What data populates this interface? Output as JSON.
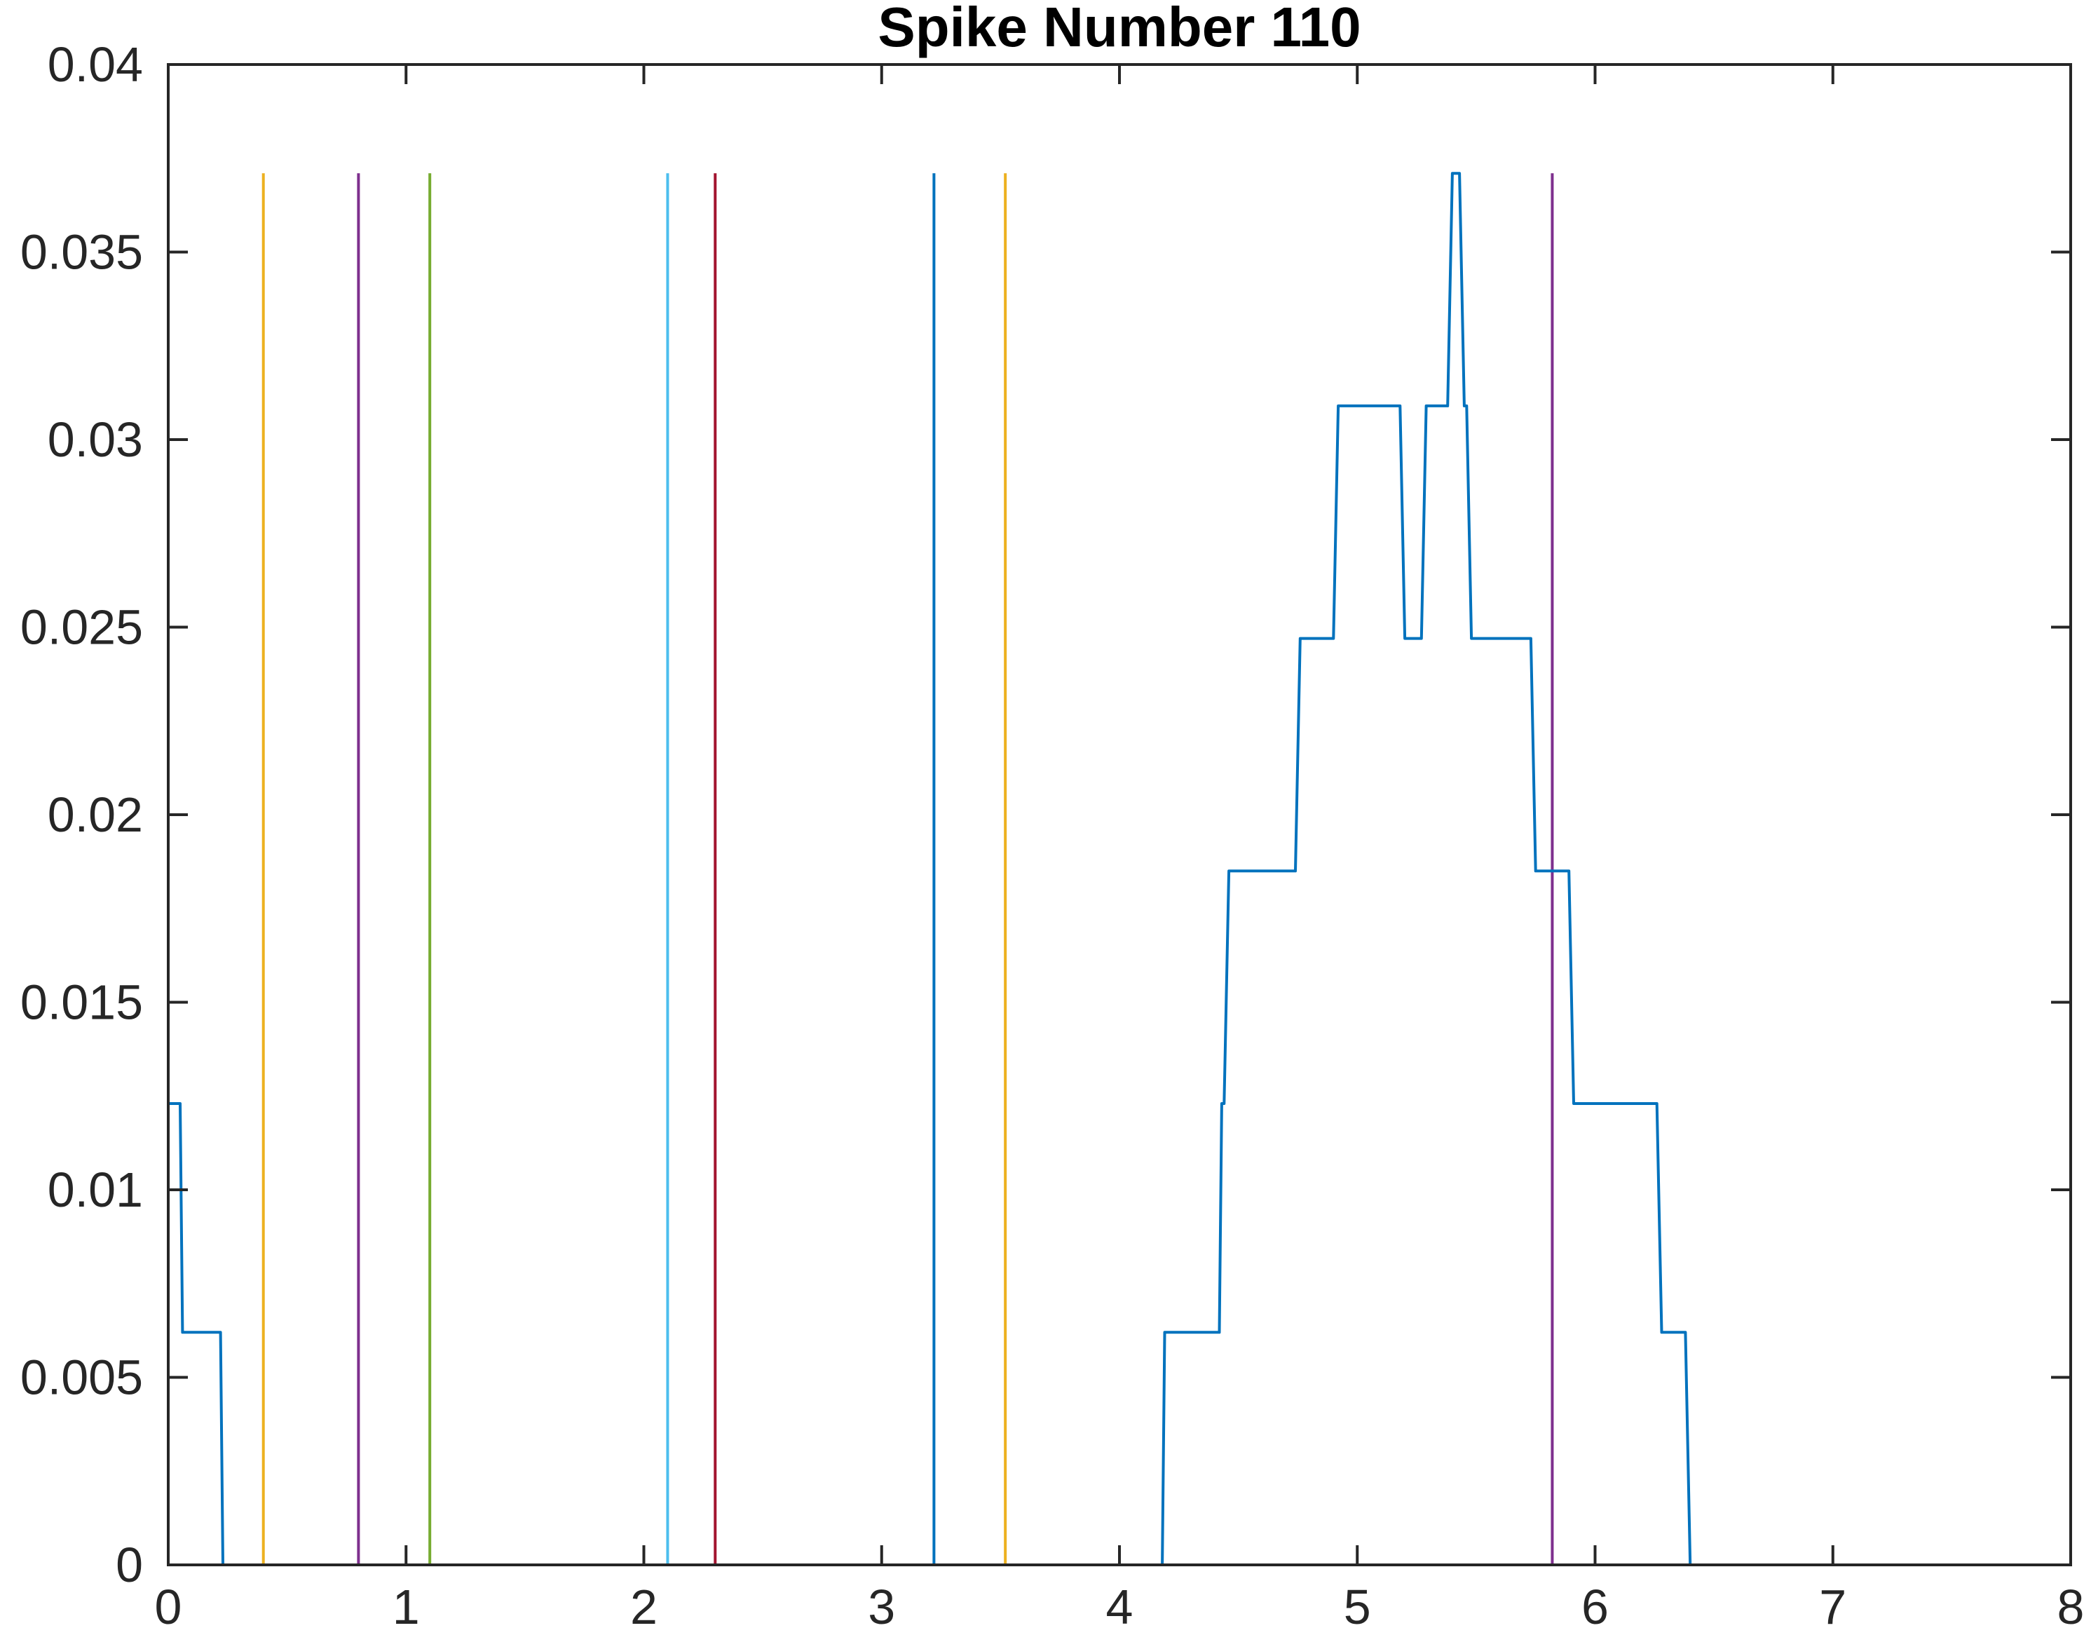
{
  "chart_data": {
    "type": "line",
    "title": "Spike Number 110",
    "xlabel": "",
    "ylabel": "",
    "xlim": [
      0,
      8
    ],
    "ylim": [
      0,
      0.04
    ],
    "grid": false,
    "x_ticks": [
      0,
      1,
      2,
      3,
      4,
      5,
      6,
      7,
      8
    ],
    "x_tick_labels": [
      "0",
      "1",
      "2",
      "3",
      "4",
      "5",
      "6",
      "7",
      "8"
    ],
    "y_ticks": [
      0,
      0.005,
      0.01,
      0.015,
      0.02,
      0.025,
      0.03,
      0.035,
      0.04
    ],
    "y_tick_labels": [
      "0",
      "0.005",
      "0.01",
      "0.015",
      "0.02",
      "0.025",
      "0.03",
      "0.035",
      "0.04"
    ],
    "series": [
      {
        "color": "#0072BD",
        "points": [
          [
            0,
            0.0123
          ],
          [
            0.05,
            0.0123
          ],
          [
            0.06,
            0.0062
          ],
          [
            0.22,
            0.0062
          ],
          [
            0.23,
            0
          ],
          [
            4.18,
            0
          ],
          [
            4.19,
            0.0062
          ],
          [
            4.42,
            0.0062
          ],
          [
            4.43,
            0.0123
          ],
          [
            4.44,
            0.0123
          ],
          [
            4.46,
            0.0185
          ],
          [
            4.74,
            0.0185
          ],
          [
            4.76,
            0.0247
          ],
          [
            4.9,
            0.0247
          ],
          [
            4.92,
            0.0309
          ],
          [
            5.18,
            0.0309
          ],
          [
            5.2,
            0.0247
          ],
          [
            5.27,
            0.0247
          ],
          [
            5.29,
            0.0309
          ],
          [
            5.38,
            0.0309
          ],
          [
            5.4,
            0.0371
          ],
          [
            5.43,
            0.0371
          ],
          [
            5.45,
            0.0309
          ],
          [
            5.46,
            0.0309
          ],
          [
            5.48,
            0.0247
          ],
          [
            5.73,
            0.0247
          ],
          [
            5.75,
            0.0185
          ],
          [
            5.89,
            0.0185
          ],
          [
            5.91,
            0.0123
          ],
          [
            6.26,
            0.0123
          ],
          [
            6.28,
            0.0062
          ],
          [
            6.38,
            0.0062
          ],
          [
            6.4,
            0
          ],
          [
            7.8,
            0
          ]
        ]
      }
    ],
    "vertical_lines": [
      {
        "x": 0.0,
        "y_top": 0.0371,
        "color": "#D95319"
      },
      {
        "x": 0.4,
        "y_top": 0.0371,
        "color": "#EDB120"
      },
      {
        "x": 0.8,
        "y_top": 0.0371,
        "color": "#7E2F8E"
      },
      {
        "x": 1.1,
        "y_top": 0.0371,
        "color": "#77AC30"
      },
      {
        "x": 2.1,
        "y_top": 0.0371,
        "color": "#4DBEEE"
      },
      {
        "x": 2.3,
        "y_top": 0.0371,
        "color": "#A2142F"
      },
      {
        "x": 3.22,
        "y_top": 0.0371,
        "color": "#0072BD"
      },
      {
        "x": 3.52,
        "y_top": 0.0371,
        "color": "#EDB120"
      },
      {
        "x": 5.82,
        "y_top": 0.0371,
        "color": "#7E2F8E"
      }
    ]
  }
}
